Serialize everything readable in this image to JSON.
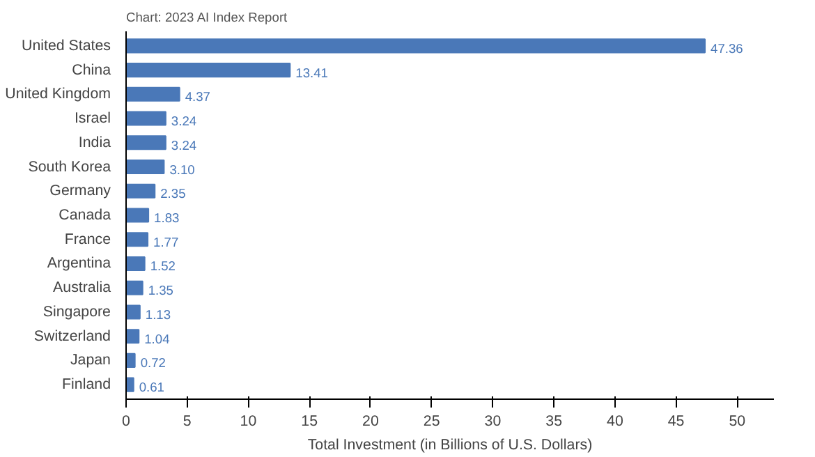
{
  "chart_data": {
    "type": "bar",
    "orientation": "horizontal",
    "annotations": [
      "Chart: 2023 AI Index Report"
    ],
    "categories": [
      "United States",
      "China",
      "United Kingdom",
      "Israel",
      "India",
      "South Korea",
      "Germany",
      "Canada",
      "France",
      "Argentina",
      "Australia",
      "Singapore",
      "Switzerland",
      "Japan",
      "Finland"
    ],
    "values": [
      47.36,
      13.41,
      4.37,
      3.24,
      3.24,
      3.1,
      2.35,
      1.83,
      1.77,
      1.52,
      1.35,
      1.13,
      1.04,
      0.72,
      0.61
    ],
    "value_labels": [
      "47.36",
      "13.41",
      "4.37",
      "3.24",
      "3.24",
      "3.10",
      "2.35",
      "1.83",
      "1.77",
      "1.52",
      "1.35",
      "1.13",
      "1.04",
      "0.72",
      "0.61"
    ],
    "color": "#4a78b8",
    "xlabel": "Total Investment (in Billions of U.S. Dollars)",
    "xlim": [
      0,
      53
    ],
    "xticks": [
      0,
      5,
      10,
      15,
      20,
      25,
      30,
      35,
      40,
      45,
      50
    ],
    "grid": false
  }
}
